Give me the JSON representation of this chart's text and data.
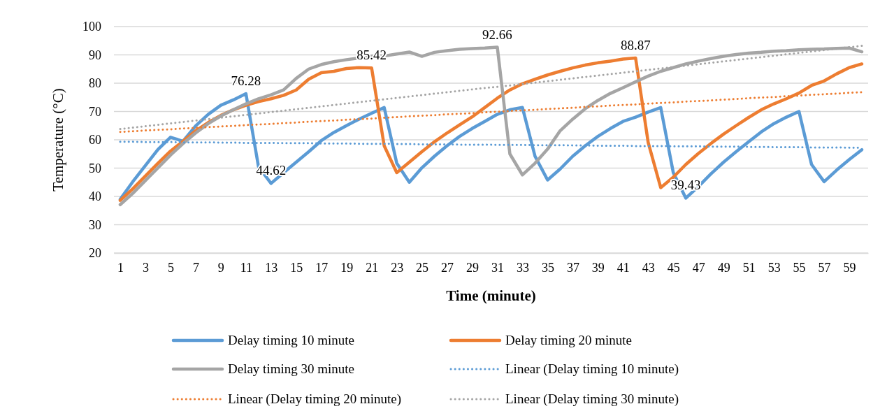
{
  "chart_data": {
    "type": "line",
    "xlabel": "Time (minute)",
    "ylabel": "Temperature (°C)",
    "x": [
      1,
      2,
      3,
      4,
      5,
      6,
      7,
      8,
      9,
      10,
      11,
      12,
      13,
      14,
      15,
      16,
      17,
      18,
      19,
      20,
      21,
      22,
      23,
      24,
      25,
      26,
      27,
      28,
      29,
      30,
      31,
      32,
      33,
      34,
      35,
      36,
      37,
      38,
      39,
      40,
      41,
      42,
      43,
      44,
      45,
      46,
      47,
      48,
      49,
      50,
      51,
      52,
      53,
      54,
      55,
      56,
      57,
      58,
      59,
      60
    ],
    "xlim": [
      0.5,
      60.5
    ],
    "xticks": [
      1,
      3,
      5,
      7,
      9,
      11,
      13,
      15,
      17,
      19,
      21,
      23,
      25,
      27,
      29,
      31,
      33,
      35,
      37,
      39,
      41,
      43,
      45,
      47,
      49,
      51,
      53,
      55,
      57,
      59
    ],
    "ylim": [
      20,
      100
    ],
    "yticks": [
      20,
      30,
      40,
      50,
      60,
      70,
      80,
      90,
      100
    ],
    "grid": "y",
    "legend": "bottom",
    "series": [
      {
        "name": "Delay timing 10 minute",
        "color": "#5b9bd5",
        "values": [
          39.0,
          45.2,
          50.9,
          56.6,
          60.9,
          59.5,
          64.9,
          69.0,
          72.2,
          74.1,
          76.3,
          50.5,
          44.6,
          48.4,
          52.1,
          55.8,
          59.7,
          62.6,
          65.0,
          67.3,
          69.4,
          71.4,
          51.7,
          45.0,
          50.1,
          54.2,
          57.9,
          61.2,
          64.0,
          66.5,
          69.0,
          70.6,
          71.4,
          54.2,
          45.8,
          49.7,
          54.2,
          57.9,
          61.2,
          64.0,
          66.5,
          68.0,
          69.8,
          71.4,
          48.4,
          39.4,
          43.5,
          48.0,
          52.1,
          55.8,
          59.3,
          62.8,
          65.7,
          68.0,
          70.0,
          51.3,
          45.2,
          49.3,
          53.0,
          56.5
        ]
      },
      {
        "name": "Delay timing 20 minute",
        "color": "#ed7d31",
        "values": [
          38.6,
          42.7,
          47.2,
          51.7,
          56.0,
          59.5,
          63.2,
          66.1,
          68.6,
          70.6,
          72.2,
          73.5,
          74.5,
          75.7,
          77.6,
          81.4,
          83.7,
          84.2,
          85.2,
          85.5,
          85.4,
          57.9,
          48.4,
          52.1,
          55.8,
          59.3,
          62.4,
          65.3,
          68.1,
          71.4,
          74.7,
          77.6,
          79.8,
          81.4,
          82.9,
          84.2,
          85.4,
          86.4,
          87.2,
          87.8,
          88.5,
          88.9,
          59.1,
          43.1,
          46.8,
          51.3,
          55.2,
          58.7,
          62.0,
          65.0,
          67.9,
          70.6,
          72.7,
          74.5,
          76.5,
          79.2,
          80.8,
          83.3,
          85.5,
          86.8
        ]
      },
      {
        "name": "Delay timing 30 minute",
        "color": "#a5a5a5",
        "values": [
          37.1,
          41.1,
          45.6,
          50.1,
          54.6,
          58.7,
          62.4,
          65.7,
          68.4,
          70.6,
          72.7,
          74.5,
          75.9,
          77.6,
          81.7,
          85.0,
          86.6,
          87.6,
          88.3,
          88.9,
          89.5,
          89.6,
          90.3,
          91.0,
          89.5,
          90.9,
          91.5,
          92.0,
          92.2,
          92.4,
          92.7,
          55.0,
          47.6,
          51.7,
          56.7,
          63.2,
          67.3,
          71.0,
          73.9,
          76.4,
          78.4,
          80.5,
          82.5,
          84.2,
          85.5,
          86.8,
          87.8,
          88.7,
          89.5,
          90.1,
          90.6,
          90.9,
          91.3,
          91.5,
          91.8,
          92.0,
          92.1,
          92.3,
          92.4,
          91.1
        ]
      },
      {
        "name": "Linear (Delay timing 10 minute)",
        "color": "#5b9bd5",
        "line_style": "dotted",
        "values": [
          59.3,
          59.3,
          59.2,
          59.2,
          59.2,
          59.1,
          59.1,
          59.1,
          59.0,
          59.0,
          58.9,
          58.9,
          58.9,
          58.8,
          58.8,
          58.8,
          58.7,
          58.7,
          58.7,
          58.6,
          58.6,
          58.6,
          58.5,
          58.5,
          58.4,
          58.4,
          58.4,
          58.3,
          58.3,
          58.3,
          58.2,
          58.2,
          58.2,
          58.1,
          58.1,
          58.1,
          58.0,
          58.0,
          57.9,
          57.9,
          57.9,
          57.8,
          57.8,
          57.8,
          57.7,
          57.7,
          57.7,
          57.6,
          57.6,
          57.6,
          57.5,
          57.5,
          57.4,
          57.4,
          57.4,
          57.3,
          57.3,
          57.3,
          57.2,
          57.2
        ]
      },
      {
        "name": "Linear (Delay timing 20 minute)",
        "color": "#ed7d31",
        "line_style": "dotted",
        "values": [
          62.8,
          63.0,
          63.3,
          63.5,
          63.7,
          64.0,
          64.2,
          64.5,
          64.7,
          64.9,
          65.2,
          65.4,
          65.6,
          65.9,
          66.1,
          66.4,
          66.6,
          66.8,
          67.1,
          67.3,
          67.5,
          67.8,
          68.0,
          68.3,
          68.5,
          68.7,
          69.0,
          69.2,
          69.4,
          69.7,
          69.9,
          70.2,
          70.4,
          70.6,
          70.9,
          71.1,
          71.3,
          71.6,
          71.8,
          72.1,
          72.3,
          72.5,
          72.8,
          73.0,
          73.2,
          73.5,
          73.7,
          73.9,
          74.2,
          74.4,
          74.7,
          74.9,
          75.1,
          75.4,
          75.6,
          75.9,
          76.1,
          76.3,
          76.6,
          76.8
        ]
      },
      {
        "name": "Linear (Delay timing 30 minute)",
        "color": "#a5a5a5",
        "line_style": "dotted",
        "values": [
          63.8,
          64.3,
          64.8,
          65.3,
          65.8,
          66.3,
          66.8,
          67.3,
          67.8,
          68.3,
          68.8,
          69.3,
          69.8,
          70.3,
          70.8,
          71.3,
          71.8,
          72.3,
          72.8,
          73.3,
          73.8,
          74.3,
          74.8,
          75.3,
          75.8,
          76.3,
          76.8,
          77.3,
          77.8,
          78.3,
          78.7,
          79.2,
          79.7,
          80.2,
          80.7,
          81.2,
          81.7,
          82.2,
          82.7,
          83.2,
          83.7,
          84.2,
          84.7,
          85.2,
          85.7,
          86.2,
          86.7,
          87.2,
          87.7,
          88.2,
          88.7,
          89.2,
          89.7,
          90.2,
          90.7,
          91.2,
          91.7,
          92.2,
          92.7,
          93.2
        ]
      }
    ],
    "annotations": [
      {
        "text": "76.28",
        "x": 11,
        "y": 76.28
      },
      {
        "text": "44.62",
        "x": 13,
        "y": 44.62
      },
      {
        "text": "85.42",
        "x": 21,
        "y": 85.42
      },
      {
        "text": "92.66",
        "x": 31,
        "y": 92.66
      },
      {
        "text": "88.87",
        "x": 42,
        "y": 88.87
      },
      {
        "text": "39.43",
        "x": 46,
        "y": 39.43
      }
    ]
  }
}
